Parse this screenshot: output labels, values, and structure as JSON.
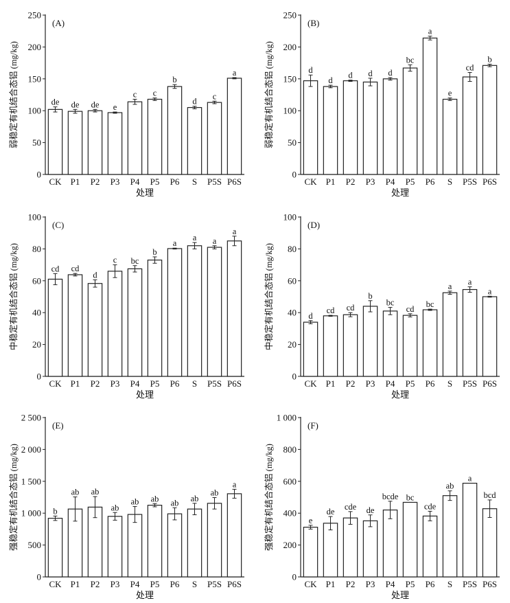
{
  "chart_data": [
    {
      "type": "bar",
      "panel_label": "(A)",
      "title": "",
      "xlabel": "处理",
      "ylabel": "弱稳定有机结合态铝 (mg/kg)",
      "ylim": [
        0,
        250
      ],
      "yticks": [
        0,
        50,
        100,
        150,
        200,
        250
      ],
      "ytick_labels": [
        "0",
        "50",
        "100",
        "150",
        "200",
        "250"
      ],
      "categories": [
        "CK",
        "P1",
        "P2",
        "P3",
        "P4",
        "P5",
        "P6",
        "S",
        "P5S",
        "P6S"
      ],
      "values": [
        102,
        99,
        100,
        97,
        114,
        118,
        138,
        105,
        113,
        151
      ],
      "errors": [
        4,
        3,
        2,
        1,
        4,
        2,
        3,
        2,
        2,
        1
      ],
      "letters": [
        "de",
        "de",
        "de",
        "e",
        "c",
        "c",
        "b",
        "d",
        "c",
        "a"
      ]
    },
    {
      "type": "bar",
      "panel_label": "(B)",
      "title": "",
      "xlabel": "处理",
      "ylabel": "弱稳定有机结合态铝 (mg/kg)",
      "ylim": [
        0,
        250
      ],
      "yticks": [
        0,
        50,
        100,
        150,
        200,
        250
      ],
      "ytick_labels": [
        "0",
        "50",
        "100",
        "150",
        "200",
        "250"
      ],
      "categories": [
        "CK",
        "P1",
        "P2",
        "P3",
        "P4",
        "P5",
        "P6",
        "S",
        "P5S",
        "P6S"
      ],
      "values": [
        147,
        138,
        147,
        145,
        150,
        167,
        214,
        118,
        153,
        171
      ],
      "errors": [
        9,
        2,
        1,
        6,
        2,
        5,
        3,
        2,
        7,
        2
      ],
      "letters": [
        "d",
        "d",
        "d",
        "d",
        "d",
        "bc",
        "a",
        "e",
        "cd",
        "b"
      ]
    },
    {
      "type": "bar",
      "panel_label": "(C)",
      "title": "",
      "xlabel": "处理",
      "ylabel": "中稳定有机结合态铝 (mg/kg)",
      "ylim": [
        0,
        100
      ],
      "yticks": [
        0,
        20,
        40,
        60,
        80,
        100
      ],
      "ytick_labels": [
        "0",
        "20",
        "40",
        "60",
        "80",
        "100"
      ],
      "categories": [
        "CK",
        "P1",
        "P2",
        "P3",
        "P4",
        "P5",
        "P6",
        "S",
        "P5S",
        "P6S"
      ],
      "values": [
        61,
        63.8,
        58.3,
        66,
        67.5,
        73,
        80.2,
        82,
        81,
        85
      ],
      "errors": [
        3.5,
        0.8,
        2.3,
        4,
        2,
        2,
        0.3,
        2,
        1,
        3
      ],
      "letters": [
        "cd",
        "cd",
        "d",
        "c",
        "bc",
        "b",
        "a",
        "a",
        "a",
        "a"
      ]
    },
    {
      "type": "bar",
      "panel_label": "(D)",
      "title": "",
      "xlabel": "处理",
      "ylabel": "中稳定有机结合态铝 (mg/kg)",
      "ylim": [
        0,
        100
      ],
      "yticks": [
        0,
        20,
        40,
        60,
        80,
        100
      ],
      "ytick_labels": [
        "0",
        "20",
        "40",
        "60",
        "80",
        "100"
      ],
      "categories": [
        "CK",
        "P1",
        "P2",
        "P3",
        "P4",
        "P5",
        "P6",
        "S",
        "P5S",
        "P6S"
      ],
      "values": [
        34,
        38,
        38.7,
        44,
        41,
        38.3,
        41.8,
        52.5,
        54.5,
        50
      ],
      "errors": [
        1,
        0.3,
        1.3,
        3.5,
        2.3,
        1,
        0.4,
        1,
        1.7,
        0.3
      ],
      "letters": [
        "d",
        "cd",
        "cd",
        "b",
        "bc",
        "cd",
        "bc",
        "a",
        "a",
        "a"
      ]
    },
    {
      "type": "bar",
      "panel_label": "(E)",
      "title": "",
      "xlabel": "处理",
      "ylabel": "强稳定有机结合态铝 (mg/kg)",
      "ylim": [
        0,
        2500
      ],
      "yticks": [
        0,
        500,
        1000,
        1500,
        2000,
        2500
      ],
      "ytick_labels": [
        "0",
        "500",
        "1 000",
        "1 500",
        "2 000",
        "2 500"
      ],
      "categories": [
        "CK",
        "P1",
        "P2",
        "P3",
        "P4",
        "P5",
        "P6",
        "S",
        "P5S",
        "P6S"
      ],
      "values": [
        920,
        1065,
        1095,
        950,
        980,
        1125,
        990,
        1065,
        1155,
        1305
      ],
      "errors": [
        35,
        190,
        165,
        60,
        125,
        25,
        95,
        90,
        90,
        70
      ],
      "letters": [
        "b",
        "ab",
        "ab",
        "ab",
        "ab",
        "ab",
        "ab",
        "ab",
        "ab",
        "a"
      ]
    },
    {
      "type": "bar",
      "panel_label": "(F)",
      "title": "",
      "xlabel": "处理",
      "ylabel": "强稳定有机结合态铝 (mg/kg)",
      "ylim": [
        0,
        1000
      ],
      "yticks": [
        0,
        200,
        400,
        600,
        800,
        1000
      ],
      "ytick_labels": [
        "0",
        "200",
        "400",
        "600",
        "800",
        "1 000"
      ],
      "categories": [
        "CK",
        "P1",
        "P2",
        "P3",
        "P4",
        "P5",
        "P6",
        "S",
        "P5S",
        "P6S"
      ],
      "values": [
        312,
        337,
        370,
        352,
        420,
        468,
        382,
        510,
        588,
        428
      ],
      "errors": [
        12,
        42,
        40,
        37,
        55,
        0,
        30,
        30,
        0,
        55
      ],
      "letters": [
        "e",
        "de",
        "cde",
        "de",
        "bcde",
        "bc",
        "cde",
        "ab",
        "a",
        "bcd"
      ]
    }
  ]
}
